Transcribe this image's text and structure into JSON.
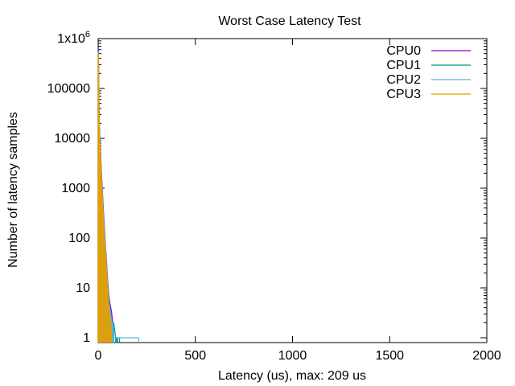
{
  "chart_data": {
    "type": "line",
    "title": "Worst Case Latency Test",
    "xlabel": "Latency (us), max: 209 us",
    "ylabel": "Number of latency samples",
    "xlim": [
      0,
      2000
    ],
    "ylim": [
      0.8,
      1000000
    ],
    "yscale": "log",
    "grid": false,
    "legend_position": "top-right",
    "x_ticks": [
      {
        "value": 0,
        "label": "0"
      },
      {
        "value": 500,
        "label": "500"
      },
      {
        "value": 1000,
        "label": "1000"
      },
      {
        "value": 1500,
        "label": "1500"
      },
      {
        "value": 2000,
        "label": "2000"
      }
    ],
    "y_ticks": [
      {
        "value": 1000000,
        "base": "1x10",
        "exp": "6"
      },
      {
        "value": 100000,
        "label": "100000"
      },
      {
        "value": 10000,
        "label": "10000"
      },
      {
        "value": 1000,
        "label": "1000"
      },
      {
        "value": 100,
        "label": "100"
      },
      {
        "value": 10,
        "label": "10"
      },
      {
        "value": 1,
        "label": "1"
      }
    ],
    "series": [
      {
        "name": "CPU0",
        "color": "#9400d3",
        "x": [
          0,
          1,
          2,
          3,
          4,
          5,
          7,
          10,
          15,
          20,
          25,
          30,
          35,
          40,
          45,
          50,
          55,
          60,
          65,
          70,
          75,
          80
        ],
        "y": [
          650000,
          600000,
          300000,
          150000,
          60000,
          25000,
          15000,
          8000,
          3000,
          1200,
          500,
          220,
          100,
          50,
          25,
          12,
          7,
          5,
          4,
          3,
          2,
          1
        ]
      },
      {
        "name": "CPU1",
        "color": "#009e73",
        "x": [
          0,
          1,
          2,
          3,
          4,
          5,
          7,
          10,
          15,
          20,
          25,
          30,
          35,
          40,
          45,
          50,
          55,
          60,
          65,
          70,
          80,
          90,
          95,
          100,
          110
        ],
        "y": [
          600000,
          550000,
          280000,
          140000,
          55000,
          22000,
          14000,
          7000,
          2600,
          1000,
          420,
          180,
          90,
          45,
          22,
          10,
          6,
          4,
          3,
          2,
          2,
          1,
          1,
          1,
          1
        ]
      },
      {
        "name": "CPU2",
        "color": "#56b4e9",
        "x": [
          0,
          1,
          2,
          3,
          4,
          5,
          7,
          10,
          15,
          20,
          25,
          30,
          35,
          40,
          45,
          50,
          55,
          60,
          65,
          70,
          75,
          80,
          209
        ],
        "y": [
          550000,
          500000,
          260000,
          130000,
          50000,
          20000,
          12000,
          6500,
          2400,
          900,
          380,
          160,
          80,
          40,
          20,
          9,
          5,
          4,
          3,
          2,
          2,
          1,
          1
        ]
      },
      {
        "name": "CPU3",
        "color": "#e69f00",
        "x": [
          0,
          1,
          2,
          3,
          4,
          5,
          7,
          10,
          15,
          20,
          25,
          30,
          35,
          40,
          45,
          50,
          55,
          60,
          65,
          70
        ],
        "y": [
          500000,
          450000,
          220000,
          110000,
          45000,
          18000,
          11000,
          6000,
          2200,
          800,
          340,
          140,
          70,
          35,
          16,
          8,
          4,
          3,
          2,
          1
        ]
      }
    ]
  }
}
